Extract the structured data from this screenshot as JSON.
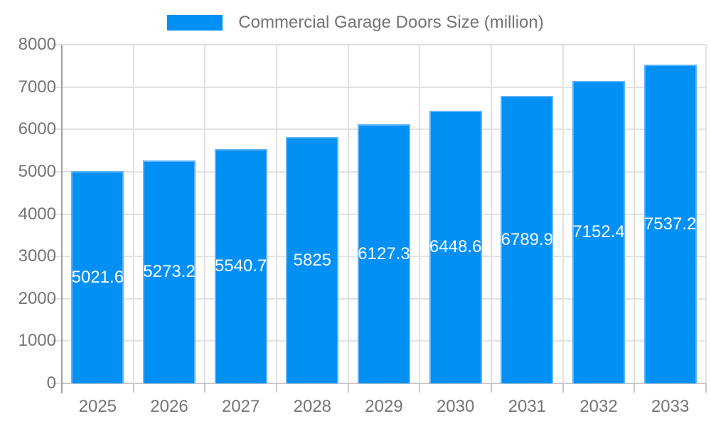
{
  "legend": {
    "label": "Commercial Garage Doors Size (million)"
  },
  "chart_data": {
    "type": "bar",
    "title": "Commercial Garage Doors Size (million)",
    "series_name": "Commercial Garage Doors Size (million)",
    "categories": [
      "2025",
      "2026",
      "2027",
      "2028",
      "2029",
      "2030",
      "2031",
      "2032",
      "2033"
    ],
    "values": [
      5021.6,
      5273.2,
      5540.7,
      5825,
      6127.3,
      6448.6,
      6789.9,
      7152.4,
      7537.2
    ],
    "data_labels": [
      "5021.6",
      "5273.2",
      "5540.7",
      "5825",
      "6127.3",
      "6448.6",
      "6789.9",
      "7152.4",
      "7537.2"
    ],
    "y_tick_labels": [
      "0",
      "1000",
      "2000",
      "3000",
      "4000",
      "5000",
      "6000",
      "7000",
      "8000"
    ],
    "xlabel": "",
    "ylabel": "",
    "ylim": [
      0,
      8000
    ],
    "ytick_step": 1000,
    "grid": true,
    "legend_position": "top",
    "colors": {
      "bar_fill": "#0290F5",
      "bar_border": "#5FB4F7",
      "data_label_text": "#ffffff",
      "axis_text": "#757575",
      "legend_text": "#737373",
      "gridline": "#e2e2e2",
      "axis_line": "#a0a0a0",
      "baseline": "#c9c9c9",
      "tick": "#c9c9c9",
      "background": "#ffffff"
    }
  }
}
